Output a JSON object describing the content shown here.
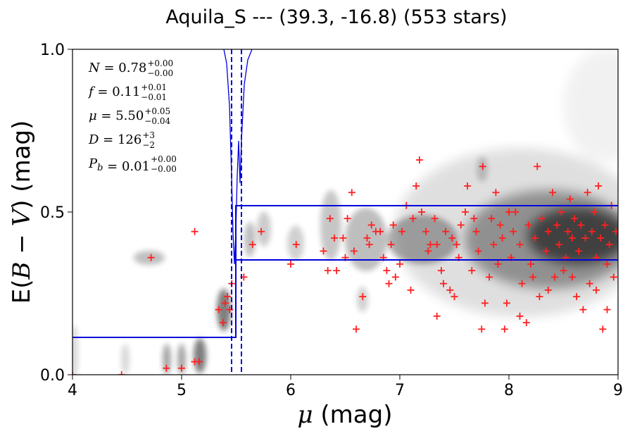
{
  "title": "Aquila_S --- (39.3, -16.8) (553 stars)",
  "chart_data": {
    "type": "scatter",
    "xlabel_symbol": "μ",
    "xlabel_unit": "(mag)",
    "ylabel_prefix": "E(",
    "ylabel_math": "B − V",
    "ylabel_suffix": ") (mag)",
    "xlim": [
      4,
      9
    ],
    "ylim": [
      0.0,
      1.0
    ],
    "xticks": [
      "4",
      "5",
      "6",
      "7",
      "8",
      "9"
    ],
    "yticks": [
      "0.0",
      "0.5",
      "1.0"
    ],
    "annotations": [
      {
        "sym": "N",
        "val": "0.78",
        "up": "+0.00",
        "dn": "−0.00"
      },
      {
        "sym": "f",
        "val": "0.11",
        "up": "+0.01",
        "dn": "−0.01"
      },
      {
        "sym": "μ",
        "val": "5.50",
        "up": "+0.05",
        "dn": "−0.04"
      },
      {
        "sym": "D",
        "val": "126",
        "up": "+3",
        "dn": "−2"
      },
      {
        "sym": "P_b",
        "val": "0.01",
        "up": "+0.00",
        "dn": "−0.00"
      }
    ],
    "step_model": {
      "x_break": 5.5,
      "lower": [
        0.11,
        0.11
      ],
      "upper": [
        0.35,
        0.52
      ]
    },
    "dashed_lines_x": [
      5.46,
      5.55
    ],
    "colors": {
      "points": "#ff2020",
      "model": "#0000dd",
      "density": "#000000"
    },
    "points": [
      [
        4.0,
        0.0
      ],
      [
        4.45,
        0.0
      ],
      [
        4.86,
        0.02
      ],
      [
        5.0,
        0.02
      ],
      [
        5.12,
        0.04
      ],
      [
        5.16,
        0.04
      ],
      [
        4.72,
        0.36
      ],
      [
        5.12,
        0.44
      ],
      [
        5.34,
        0.2
      ],
      [
        5.38,
        0.16
      ],
      [
        5.4,
        0.22
      ],
      [
        5.42,
        0.24
      ],
      [
        5.44,
        0.2
      ],
      [
        5.46,
        0.28
      ],
      [
        5.57,
        0.3
      ],
      [
        5.65,
        0.4
      ],
      [
        5.73,
        0.44
      ],
      [
        6.0,
        0.34
      ],
      [
        6.05,
        0.4
      ],
      [
        6.3,
        0.38
      ],
      [
        6.34,
        0.32
      ],
      [
        6.36,
        0.48
      ],
      [
        6.4,
        0.42
      ],
      [
        6.42,
        0.32
      ],
      [
        6.48,
        0.42
      ],
      [
        6.5,
        0.36
      ],
      [
        6.52,
        0.48
      ],
      [
        6.56,
        0.56
      ],
      [
        6.58,
        0.38
      ],
      [
        6.6,
        0.14
      ],
      [
        6.66,
        0.24
      ],
      [
        6.7,
        0.42
      ],
      [
        6.72,
        0.4
      ],
      [
        6.74,
        0.46
      ],
      [
        6.78,
        0.44
      ],
      [
        6.82,
        0.44
      ],
      [
        6.85,
        0.36
      ],
      [
        6.88,
        0.32
      ],
      [
        6.9,
        0.28
      ],
      [
        6.92,
        0.4
      ],
      [
        6.96,
        0.3
      ],
      [
        7.0,
        0.34
      ],
      [
        7.02,
        0.44
      ],
      [
        7.06,
        0.52
      ],
      [
        7.1,
        0.26
      ],
      [
        7.12,
        0.48
      ],
      [
        7.15,
        0.58
      ],
      [
        7.18,
        0.66
      ],
      [
        7.2,
        0.5
      ],
      [
        7.24,
        0.44
      ],
      [
        7.26,
        0.38
      ],
      [
        7.28,
        0.4
      ],
      [
        7.32,
        0.48
      ],
      [
        7.34,
        0.18
      ],
      [
        7.38,
        0.32
      ],
      [
        7.4,
        0.28
      ],
      [
        7.42,
        0.44
      ],
      [
        7.46,
        0.26
      ],
      [
        7.48,
        0.42
      ],
      [
        7.5,
        0.24
      ],
      [
        7.54,
        0.36
      ],
      [
        7.56,
        0.46
      ],
      [
        7.6,
        0.5
      ],
      [
        7.62,
        0.58
      ],
      [
        7.66,
        0.32
      ],
      [
        7.7,
        0.44
      ],
      [
        7.72,
        0.38
      ],
      [
        7.75,
        0.14
      ],
      [
        7.76,
        0.64
      ],
      [
        7.78,
        0.22
      ],
      [
        7.82,
        0.3
      ],
      [
        7.84,
        0.48
      ],
      [
        7.86,
        0.4
      ],
      [
        7.88,
        0.56
      ],
      [
        7.92,
        0.46
      ],
      [
        7.94,
        0.42
      ],
      [
        7.96,
        0.14
      ],
      [
        7.98,
        0.22
      ],
      [
        8.02,
        0.36
      ],
      [
        8.04,
        0.44
      ],
      [
        8.06,
        0.5
      ],
      [
        8.1,
        0.4
      ],
      [
        8.12,
        0.28
      ],
      [
        8.16,
        0.16
      ],
      [
        8.18,
        0.46
      ],
      [
        8.2,
        0.34
      ],
      [
        8.24,
        0.42
      ],
      [
        8.26,
        0.64
      ],
      [
        8.28,
        0.24
      ],
      [
        8.3,
        0.48
      ],
      [
        8.34,
        0.38
      ],
      [
        8.36,
        0.44
      ],
      [
        8.4,
        0.56
      ],
      [
        8.42,
        0.3
      ],
      [
        8.44,
        0.46
      ],
      [
        8.46,
        0.4
      ],
      [
        8.48,
        0.5
      ],
      [
        8.52,
        0.36
      ],
      [
        8.54,
        0.44
      ],
      [
        8.56,
        0.54
      ],
      [
        8.58,
        0.42
      ],
      [
        8.6,
        0.48
      ],
      [
        8.62,
        0.24
      ],
      [
        8.64,
        0.38
      ],
      [
        8.66,
        0.46
      ],
      [
        8.7,
        0.42
      ],
      [
        8.72,
        0.56
      ],
      [
        8.74,
        0.28
      ],
      [
        8.76,
        0.44
      ],
      [
        8.78,
        0.5
      ],
      [
        8.8,
        0.36
      ],
      [
        8.82,
        0.58
      ],
      [
        8.84,
        0.42
      ],
      [
        8.86,
        0.14
      ],
      [
        8.88,
        0.46
      ],
      [
        8.9,
        0.2
      ],
      [
        8.92,
        0.4
      ],
      [
        8.94,
        0.52
      ],
      [
        8.96,
        0.3
      ],
      [
        8.98,
        0.44
      ],
      [
        8.1,
        0.18
      ],
      [
        8.5,
        0.32
      ],
      [
        8.68,
        0.2
      ],
      [
        8.36,
        0.26
      ],
      [
        7.9,
        0.34
      ],
      [
        7.34,
        0.4
      ],
      [
        6.94,
        0.46
      ],
      [
        7.52,
        0.4
      ],
      [
        8.22,
        0.3
      ],
      [
        8.8,
        0.26
      ],
      [
        8.58,
        0.3
      ],
      [
        8.0,
        0.5
      ],
      [
        7.68,
        0.48
      ],
      [
        8.9,
        0.34
      ]
    ]
  }
}
